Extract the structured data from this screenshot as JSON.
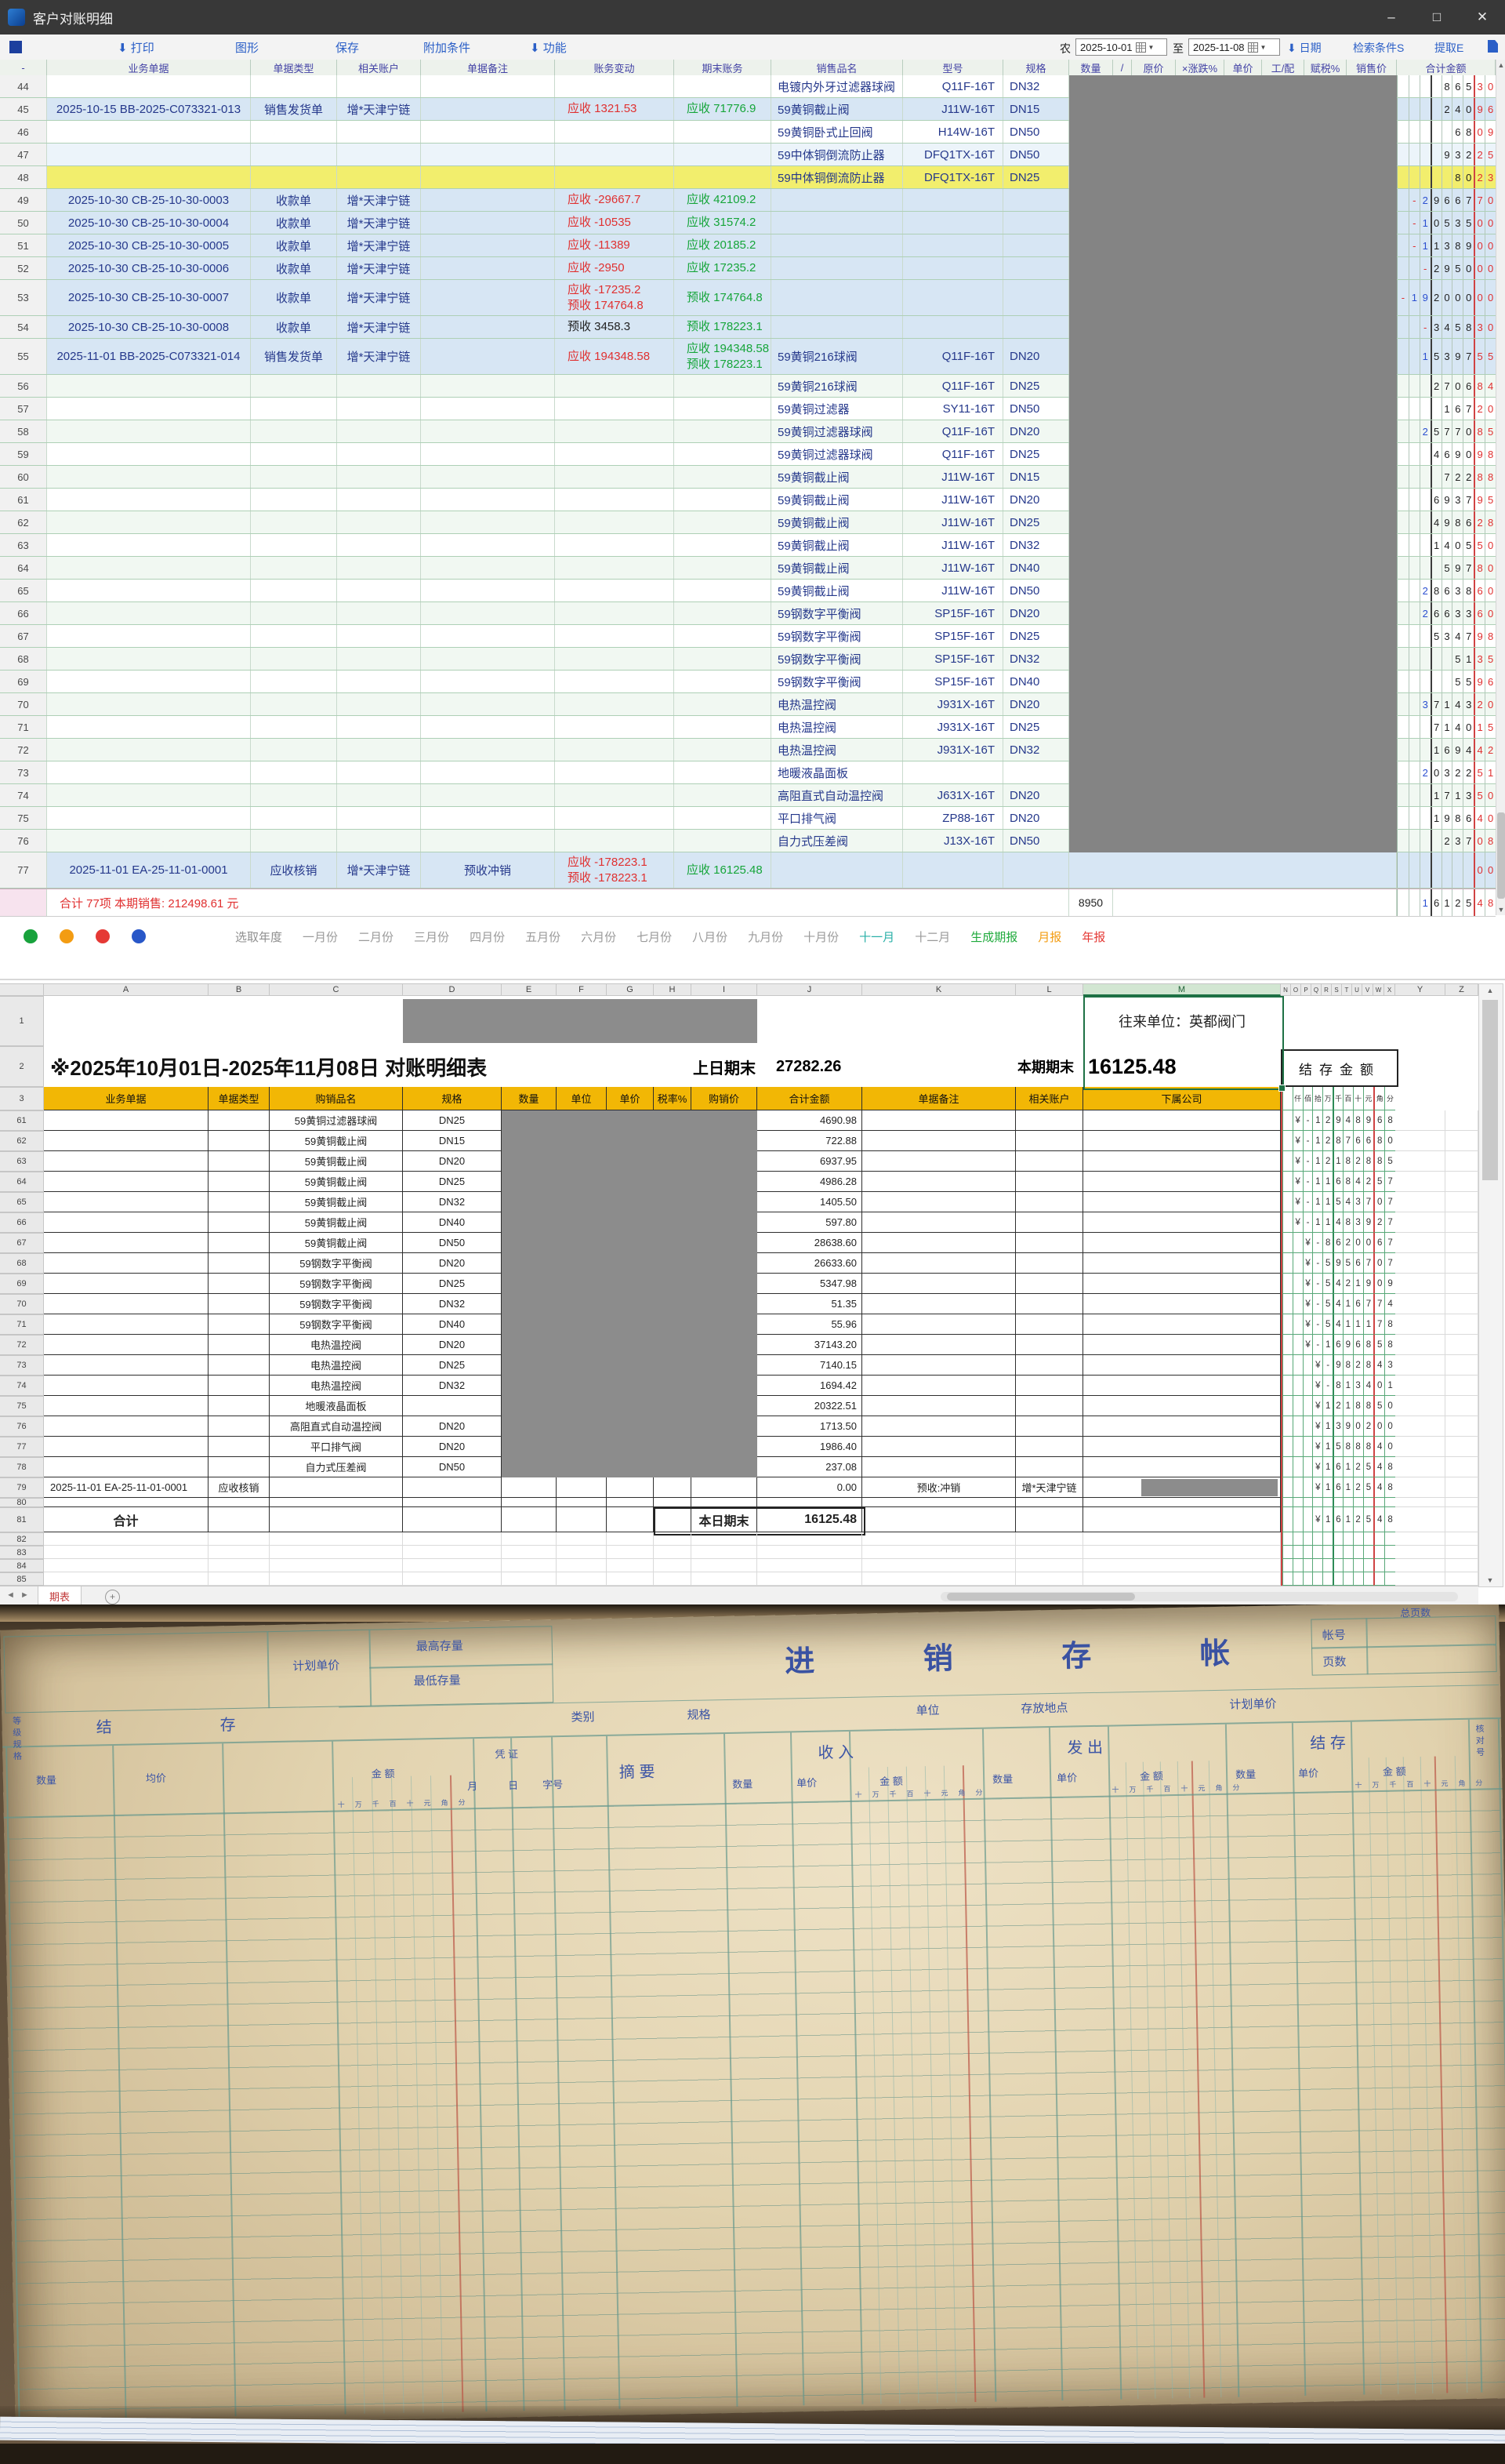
{
  "window": {
    "title": "客户对账明细",
    "min": "–",
    "max": "□",
    "close": "✕"
  },
  "toolbar": {
    "items": [
      {
        "icon": "down",
        "label": "打印"
      },
      {
        "label": "图形"
      },
      {
        "label": "保存"
      },
      {
        "label": "附加条件"
      },
      {
        "icon": "down",
        "label": "功能"
      }
    ]
  },
  "filters": {
    "prefix": "农",
    "from": "2025-10-01",
    "to_label": "至",
    "to": "2025-11-08",
    "date_label": "日期",
    "search_label": "检索条件S",
    "extract_label": "提取E"
  },
  "erp": {
    "headers": [
      "-",
      "业务单据",
      "单据类型",
      "相关账户",
      "单据备注",
      "账务变动",
      "期末账务",
      "销售品名",
      "型号",
      "规格",
      "数量",
      "/",
      "原价",
      "×涨跌%",
      "单价",
      "工/配",
      "赋税%",
      "销售价",
      "合计金额"
    ],
    "rows": [
      {
        "n": "44",
        "bg": "w",
        "pr": "电镀内外牙过滤器球阀",
        "mo": "Q11F-16T",
        "sp": "DN32",
        "am": "86530"
      },
      {
        "n": "45",
        "bg": "b",
        "doc": "2025-10-15 BB-2025-C073321-013",
        "ty": "销售发货单",
        "ac": "增*天津宁链",
        "ch": [
          [
            "应收 1321.53",
            "r"
          ]
        ],
        "ba": [
          "应收 71776.9"
        ],
        "pr": "59黄铜截止阀",
        "mo": "J11W-16T",
        "sp": "DN15",
        "am": "24096"
      },
      {
        "n": "46",
        "bg": "w",
        "pr": "59黄铜卧式止回阀",
        "mo": "H14W-16T",
        "sp": "DN50",
        "am": "6809"
      },
      {
        "n": "47",
        "bg": "p",
        "pr": "59中体铜倒流防止器",
        "mo": "DFQ1TX-16T",
        "sp": "DN50",
        "am": "93225"
      },
      {
        "n": "48",
        "bg": "y",
        "pr": "59中体铜倒流防止器",
        "mo": "DFQ1TX-16T",
        "sp": "DN25",
        "am": "8023"
      },
      {
        "n": "49",
        "bg": "b",
        "doc": "2025-10-30 CB-25-10-30-0003",
        "ty": "收款单",
        "ac": "增*天津宁链",
        "ch": [
          [
            "应收 -29667.7",
            "r"
          ]
        ],
        "ba": [
          "应收 42109.2"
        ],
        "am": "-2966770"
      },
      {
        "n": "50",
        "bg": "b",
        "doc": "2025-10-30 CB-25-10-30-0004",
        "ty": "收款单",
        "ac": "增*天津宁链",
        "ch": [
          [
            "应收 -10535",
            "r"
          ]
        ],
        "ba": [
          "应收 31574.2"
        ],
        "am": "-1053500"
      },
      {
        "n": "51",
        "bg": "b",
        "doc": "2025-10-30 CB-25-10-30-0005",
        "ty": "收款单",
        "ac": "增*天津宁链",
        "ch": [
          [
            "应收 -11389",
            "r"
          ]
        ],
        "ba": [
          "应收 20185.2"
        ],
        "am": "-1138900"
      },
      {
        "n": "52",
        "bg": "b",
        "doc": "2025-10-30 CB-25-10-30-0006",
        "ty": "收款单",
        "ac": "增*天津宁链",
        "ch": [
          [
            "应收 -2950",
            "r"
          ]
        ],
        "ba": [
          "应收 17235.2"
        ],
        "am": "-295000"
      },
      {
        "n": "53",
        "bg": "b",
        "h": 1,
        "doc": "2025-10-30 CB-25-10-30-0007",
        "ty": "收款单",
        "ac": "增*天津宁链",
        "ch": [
          [
            "应收 -17235.2",
            "r"
          ],
          [
            "预收 174764.8",
            "r"
          ]
        ],
        "ba": [
          "预收 174764.8"
        ],
        "am": "-19200000"
      },
      {
        "n": "54",
        "bg": "b",
        "doc": "2025-10-30 CB-25-10-30-0008",
        "ty": "收款单",
        "ac": "增*天津宁链",
        "ch": [
          [
            "预收 3458.3",
            "k"
          ]
        ],
        "ba": [
          "预收 178223.1"
        ],
        "am": "-345830"
      },
      {
        "n": "55",
        "bg": "b",
        "h": 1,
        "doc": "2025-11-01 BB-2025-C073321-014",
        "ty": "销售发货单",
        "ac": "增*天津宁链",
        "ch": [
          [
            "应收 194348.58",
            "r"
          ]
        ],
        "ba": [
          "应收 194348.58",
          "预收 178223.1"
        ],
        "pr": "59黄铜216球阀",
        "mo": "Q11F-16T",
        "sp": "DN20",
        "am": "1539755"
      },
      {
        "n": "56",
        "bg": "z",
        "pr": "59黄铜216球阀",
        "mo": "Q11F-16T",
        "sp": "DN25",
        "am": "270684"
      },
      {
        "n": "57",
        "bg": "w",
        "pr": "59黄铜过滤器",
        "mo": "SY11-16T",
        "sp": "DN50",
        "am": "16720"
      },
      {
        "n": "58",
        "bg": "z",
        "pr": "59黄铜过滤器球阀",
        "mo": "Q11F-16T",
        "sp": "DN20",
        "am": "2577085"
      },
      {
        "n": "59",
        "bg": "w",
        "pr": "59黄铜过滤器球阀",
        "mo": "Q11F-16T",
        "sp": "DN25",
        "am": "469098"
      },
      {
        "n": "60",
        "bg": "z",
        "pr": "59黄铜截止阀",
        "mo": "J11W-16T",
        "sp": "DN15",
        "am": "72288"
      },
      {
        "n": "61",
        "bg": "w",
        "pr": "59黄铜截止阀",
        "mo": "J11W-16T",
        "sp": "DN20",
        "am": "693795"
      },
      {
        "n": "62",
        "bg": "z",
        "pr": "59黄铜截止阀",
        "mo": "J11W-16T",
        "sp": "DN25",
        "am": "498628"
      },
      {
        "n": "63",
        "bg": "w",
        "pr": "59黄铜截止阀",
        "mo": "J11W-16T",
        "sp": "DN32",
        "am": "140550"
      },
      {
        "n": "64",
        "bg": "z",
        "pr": "59黄铜截止阀",
        "mo": "J11W-16T",
        "sp": "DN40",
        "am": "59780"
      },
      {
        "n": "65",
        "bg": "w",
        "pr": "59黄铜截止阀",
        "mo": "J11W-16T",
        "sp": "DN50",
        "am": "2863860"
      },
      {
        "n": "66",
        "bg": "z",
        "pr": "59钢数字平衡阀",
        "mo": "SP15F-16T",
        "sp": "DN20",
        "am": "2663360"
      },
      {
        "n": "67",
        "bg": "w",
        "pr": "59钢数字平衡阀",
        "mo": "SP15F-16T",
        "sp": "DN25",
        "am": "534798"
      },
      {
        "n": "68",
        "bg": "z",
        "pr": "59钢数字平衡阀",
        "mo": "SP15F-16T",
        "sp": "DN32",
        "am": "5135"
      },
      {
        "n": "69",
        "bg": "w",
        "pr": "59钢数字平衡阀",
        "mo": "SP15F-16T",
        "sp": "DN40",
        "am": "5596"
      },
      {
        "n": "70",
        "bg": "z",
        "pr": "电热温控阀",
        "mo": "J931X-16T",
        "sp": "DN20",
        "am": "3714320"
      },
      {
        "n": "71",
        "bg": "w",
        "pr": "电热温控阀",
        "mo": "J931X-16T",
        "sp": "DN25",
        "am": "714015"
      },
      {
        "n": "72",
        "bg": "z",
        "pr": "电热温控阀",
        "mo": "J931X-16T",
        "sp": "DN32",
        "am": "169442"
      },
      {
        "n": "73",
        "bg": "w",
        "pr": "地暖液晶面板",
        "am": "2032251"
      },
      {
        "n": "74",
        "bg": "z",
        "pr": "高阻直式自动温控阀",
        "mo": "J631X-16T",
        "sp": "DN20",
        "am": "171350"
      },
      {
        "n": "75",
        "bg": "w",
        "pr": "平口排气阀",
        "mo": "ZP88-16T",
        "sp": "DN20",
        "am": "198640"
      },
      {
        "n": "76",
        "bg": "z",
        "pr": "自力式压差阀",
        "mo": "J13X-16T",
        "sp": "DN50",
        "am": "23708"
      },
      {
        "n": "77",
        "bg": "b",
        "h": 1,
        "doc": "2025-11-01 EA-25-11-01-0001",
        "ty": "应收核销",
        "ac": "增*天津宁链",
        "no": "预收冲销",
        "ch": [
          [
            "应收 -178223.1",
            "r"
          ],
          [
            "预收 -178223.1",
            "r"
          ]
        ],
        "ba": [
          "应收 16125.48"
        ],
        "am": "00"
      }
    ],
    "footer": {
      "label": "合计 77项 本期销售: 212498.61 元",
      "qty": "8950",
      "amount": "1612548"
    },
    "months": {
      "dots": [
        "#18a23c",
        "#f39c12",
        "#e53935",
        "#2857c8"
      ],
      "items": [
        {
          "t": "选取年度",
          "c": "#8f8f8f"
        },
        {
          "t": "一月份",
          "c": "#9a9a9a"
        },
        {
          "t": "二月份",
          "c": "#9a9a9a"
        },
        {
          "t": "三月份",
          "c": "#9a9a9a"
        },
        {
          "t": "四月份",
          "c": "#9a9a9a"
        },
        {
          "t": "五月份",
          "c": "#9a9a9a"
        },
        {
          "t": "六月份",
          "c": "#9a9a9a"
        },
        {
          "t": "七月份",
          "c": "#9a9a9a"
        },
        {
          "t": "八月份",
          "c": "#9a9a9a"
        },
        {
          "t": "九月份",
          "c": "#9a9a9a"
        },
        {
          "t": "十月份",
          "c": "#9a9a9a"
        },
        {
          "t": "十一月",
          "c": "#2ab0a8"
        },
        {
          "t": "十二月",
          "c": "#9a9a9a"
        },
        {
          "t": "生成期报",
          "c": "#1faa3c"
        },
        {
          "t": "月报",
          "c": "#f39c12"
        },
        {
          "t": "年报",
          "c": "#e53935"
        }
      ]
    }
  },
  "excel": {
    "letters_a": "ABCDEFGHIJKLM",
    "letters_n": "NOPQRSTUVWX",
    "letters_y": "YZ",
    "gutter": [
      "1",
      "2",
      "3",
      "61",
      "62",
      "63",
      "64",
      "65",
      "66",
      "67",
      "68",
      "69",
      "70",
      "71",
      "72",
      "73",
      "74",
      "75",
      "76",
      "77",
      "78",
      "79",
      "80",
      "81",
      "82",
      "83",
      "84",
      "85"
    ],
    "r1": {
      "partner": "往来单位：英都阀门"
    },
    "r2": {
      "title": "※2025年10月01日-2025年11月08日  对账明细表",
      "prev_label": "上日期末",
      "prev": "27282.26",
      "cur_label": "本期期末",
      "cur": "16125.48",
      "balance_header": "结 存 金 额"
    },
    "headers": [
      "业务单据",
      "单据类型",
      "购销品名",
      "规格",
      "数量",
      "单位",
      "单价",
      "税率%",
      "购销价",
      "合计金额",
      "单据备注",
      "相关账户",
      "下属公司"
    ],
    "digit_headers": [
      "",
      "仟",
      "佰",
      "拾",
      "万",
      "千",
      "百",
      "十",
      "元",
      "角",
      "分"
    ],
    "rows": [
      {
        "n": "61",
        "pr": "59黄铜过滤器球阀",
        "sp": "DN25",
        "amt": "4690.98",
        "bal": "¥-12948968"
      },
      {
        "n": "62",
        "pr": "59黄铜截止阀",
        "sp": "DN15",
        "amt": "722.88",
        "bal": "¥-12876680"
      },
      {
        "n": "63",
        "pr": "59黄铜截止阀",
        "sp": "DN20",
        "amt": "6937.95",
        "bal": "¥-12182885"
      },
      {
        "n": "64",
        "pr": "59黄铜截止阀",
        "sp": "DN25",
        "amt": "4986.28",
        "bal": "¥-11684257"
      },
      {
        "n": "65",
        "pr": "59黄铜截止阀",
        "sp": "DN32",
        "amt": "1405.50",
        "bal": "¥-11543707"
      },
      {
        "n": "66",
        "pr": "59黄铜截止阀",
        "sp": "DN40",
        "amt": "597.80",
        "bal": "¥-11483927"
      },
      {
        "n": "67",
        "pr": "59黄铜截止阀",
        "sp": "DN50",
        "amt": "28638.60",
        "bal": "¥-8620067"
      },
      {
        "n": "68",
        "pr": "59钢数字平衡阀",
        "sp": "DN20",
        "amt": "26633.60",
        "bal": "¥-5956707"
      },
      {
        "n": "69",
        "pr": "59钢数字平衡阀",
        "sp": "DN25",
        "amt": "5347.98",
        "bal": "¥-5421909"
      },
      {
        "n": "70",
        "pr": "59钢数字平衡阀",
        "sp": "DN32",
        "amt": "51.35",
        "bal": "¥-5416774"
      },
      {
        "n": "71",
        "pr": "59钢数字平衡阀",
        "sp": "DN40",
        "amt": "55.96",
        "bal": "¥-5411178"
      },
      {
        "n": "72",
        "pr": "电热温控阀",
        "sp": "DN20",
        "amt": "37143.20",
        "bal": "¥-1696858"
      },
      {
        "n": "73",
        "pr": "电热温控阀",
        "sp": "DN25",
        "amt": "7140.15",
        "bal": "¥-982843"
      },
      {
        "n": "74",
        "pr": "电热温控阀",
        "sp": "DN32",
        "amt": "1694.42",
        "bal": "¥-813401"
      },
      {
        "n": "75",
        "pr": "地暖液晶面板",
        "sp": "",
        "amt": "20322.51",
        "bal": "¥1218850"
      },
      {
        "n": "76",
        "pr": "高阻直式自动温控阀",
        "sp": "DN20",
        "amt": "1713.50",
        "bal": "¥1390200"
      },
      {
        "n": "77",
        "pr": "平口排气阀",
        "sp": "DN20",
        "amt": "1986.40",
        "bal": "¥1588840"
      },
      {
        "n": "78",
        "pr": "自力式压差阀",
        "sp": "DN50",
        "amt": "237.08",
        "bal": "¥1612548"
      }
    ],
    "r79": {
      "doc": "2025-11-01 EA-25-11-01-0001",
      "ty": "应收核销",
      "amt": "0.00",
      "note": "预收:冲销",
      "ac": "增*天津宁链",
      "bal": "¥1612548"
    },
    "r81": {
      "label": "合计",
      "end_label": "本日期末",
      "end": "16125.48",
      "bal": "¥1612548"
    },
    "tab": "期表"
  },
  "photo": {
    "title": "进 销 存 帐",
    "plan_price": "计划单价",
    "max_stock": "最高存量",
    "min_stock": "最低存量",
    "grade": "等级规格",
    "jie": "结",
    "cun": "存",
    "info": [
      "类别",
      "规格",
      "单位",
      "存放地点",
      "计划单价"
    ],
    "acct_no": "帐号",
    "page_no": "页数",
    "total_pages": "总页数",
    "voucher": "凭 证",
    "month": "月",
    "day": "日",
    "doc_no": "字号",
    "summary": "摘 要",
    "col_in": "收 入",
    "col_out": "发 出",
    "col_bal": "结 存",
    "sub_qty": "数量",
    "sub_price": "单价",
    "sub_amt": "金 额",
    "sub_avg": "均价",
    "check": "核对号",
    "digit_chars": "十万千百十元角分"
  }
}
